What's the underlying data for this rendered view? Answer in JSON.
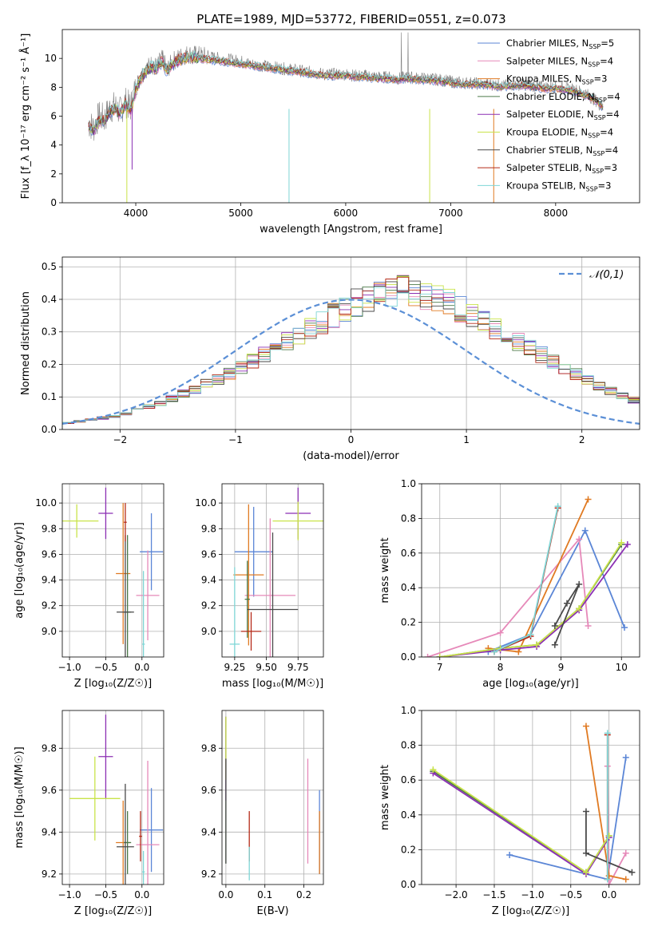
{
  "figure": {
    "title": "PLATE=1989, MJD=53772, FIBERID=0551, z=0.073"
  },
  "models": [
    {
      "name": "Chabrier MILES",
      "nssp": "5",
      "color": "#5b86d6"
    },
    {
      "name": "Salpeter MILES",
      "nssp": "4",
      "color": "#e689b9"
    },
    {
      "name": "Kroupa MILES",
      "nssp": "3",
      "color": "#e07a22"
    },
    {
      "name": "Chabrier ELODIE",
      "nssp": "4",
      "color": "#4c7a4a"
    },
    {
      "name": "Salpeter ELODIE",
      "nssp": "4",
      "color": "#8b2fb3"
    },
    {
      "name": "Kroupa ELODIE",
      "nssp": "4",
      "color": "#c9e34a"
    },
    {
      "name": "Chabrier STELIB",
      "nssp": "4",
      "color": "#4a4a4a"
    },
    {
      "name": "Salpeter STELIB",
      "nssp": "3",
      "color": "#b52a18"
    },
    {
      "name": "Kroupa STELIB",
      "nssp": "3",
      "color": "#7fd6d6"
    }
  ],
  "chart_data": [
    {
      "id": "spectrum",
      "type": "line",
      "xlabel": "wavelength [Angstrom, rest frame]",
      "ylabel": "Flux [f_λ 10⁻¹⁷ erg cm⁻² s⁻¹ Å⁻¹]",
      "xlim": [
        3300,
        8800
      ],
      "ylim": [
        0,
        12
      ],
      "xticks": [
        4000,
        5000,
        6000,
        7000,
        8000
      ],
      "yticks": [
        0,
        2,
        4,
        6,
        8,
        10
      ],
      "data_color": "#808080",
      "data_points": [
        [
          3550,
          5.5
        ],
        [
          3600,
          5.2
        ],
        [
          3650,
          6.0
        ],
        [
          3700,
          5.8
        ],
        [
          3750,
          6.5
        ],
        [
          3800,
          6.7
        ],
        [
          3850,
          6.3
        ],
        [
          3900,
          7.0
        ],
        [
          3950,
          6.6
        ],
        [
          4000,
          8.0
        ],
        [
          4050,
          8.8
        ],
        [
          4100,
          9.3
        ],
        [
          4150,
          9.6
        ],
        [
          4200,
          9.4
        ],
        [
          4250,
          10.0
        ],
        [
          4300,
          9.2
        ],
        [
          4350,
          9.8
        ],
        [
          4400,
          10.0
        ],
        [
          4450,
          10.2
        ],
        [
          4500,
          10.3
        ],
        [
          4600,
          10.2
        ],
        [
          4700,
          10.1
        ],
        [
          4800,
          10.0
        ],
        [
          4900,
          9.9
        ],
        [
          5000,
          9.8
        ],
        [
          5100,
          9.6
        ],
        [
          5200,
          9.5
        ],
        [
          5300,
          9.4
        ],
        [
          5400,
          9.3
        ],
        [
          5500,
          9.2
        ],
        [
          5600,
          9.1
        ],
        [
          5700,
          9.0
        ],
        [
          5800,
          8.9
        ],
        [
          5900,
          8.9
        ],
        [
          6000,
          8.9
        ],
        [
          6100,
          8.8
        ],
        [
          6200,
          8.8
        ],
        [
          6300,
          8.7
        ],
        [
          6400,
          8.7
        ],
        [
          6500,
          8.6
        ],
        [
          6600,
          8.7
        ],
        [
          6700,
          8.6
        ],
        [
          6800,
          8.6
        ],
        [
          6900,
          8.5
        ],
        [
          7000,
          8.4
        ],
        [
          7100,
          8.3
        ],
        [
          7200,
          8.3
        ],
        [
          7300,
          8.2
        ],
        [
          7400,
          8.2
        ],
        [
          7500,
          8.1
        ],
        [
          7600,
          8.2
        ],
        [
          7700,
          8.2
        ],
        [
          7800,
          8.1
        ],
        [
          7900,
          8.0
        ],
        [
          8000,
          8.0
        ],
        [
          8100,
          7.9
        ],
        [
          8200,
          7.8
        ],
        [
          8300,
          7.5
        ],
        [
          8400,
          7.0
        ],
        [
          8450,
          6.5
        ]
      ],
      "model_points": [
        [
          3550,
          5.3
        ],
        [
          3600,
          5.0
        ],
        [
          3650,
          5.7
        ],
        [
          3700,
          5.6
        ],
        [
          3750,
          6.3
        ],
        [
          3800,
          6.5
        ],
        [
          3850,
          6.2
        ],
        [
          3900,
          6.8
        ],
        [
          3950,
          6.4
        ],
        [
          4000,
          7.8
        ],
        [
          4050,
          8.6
        ],
        [
          4100,
          9.1
        ],
        [
          4150,
          9.4
        ],
        [
          4200,
          9.3
        ],
        [
          4250,
          9.8
        ],
        [
          4300,
          9.1
        ],
        [
          4350,
          9.6
        ],
        [
          4400,
          9.8
        ],
        [
          4450,
          10.0
        ],
        [
          4500,
          10.1
        ],
        [
          4600,
          10.0
        ],
        [
          4700,
          9.9
        ],
        [
          4800,
          9.8
        ],
        [
          4900,
          9.7
        ],
        [
          5000,
          9.6
        ],
        [
          5100,
          9.5
        ],
        [
          5200,
          9.4
        ],
        [
          5300,
          9.3
        ],
        [
          5400,
          9.2
        ],
        [
          5500,
          9.1
        ],
        [
          5600,
          9.0
        ],
        [
          5700,
          8.9
        ],
        [
          5800,
          8.8
        ],
        [
          5900,
          8.8
        ],
        [
          6000,
          8.8
        ],
        [
          6100,
          8.7
        ],
        [
          6200,
          8.7
        ],
        [
          6300,
          8.6
        ],
        [
          6400,
          8.6
        ],
        [
          6500,
          8.5
        ],
        [
          6600,
          8.6
        ],
        [
          6700,
          8.5
        ],
        [
          6800,
          8.5
        ],
        [
          6900,
          8.4
        ],
        [
          7000,
          8.3
        ],
        [
          7100,
          8.2
        ],
        [
          7200,
          8.2
        ],
        [
          7300,
          8.2
        ],
        [
          7400,
          8.1
        ],
        [
          7500,
          8.0
        ],
        [
          7600,
          8.1
        ],
        [
          7700,
          8.1
        ],
        [
          7800,
          8.0
        ],
        [
          7900,
          7.9
        ],
        [
          8000,
          7.9
        ],
        [
          8100,
          7.8
        ],
        [
          8200,
          7.7
        ],
        [
          8300,
          7.4
        ],
        [
          8400,
          7.0
        ],
        [
          8450,
          6.6
        ]
      ],
      "legend": "upper-right"
    },
    {
      "id": "residuals",
      "type": "step",
      "xlabel": "(data-model)/error",
      "ylabel": "Normed distribution",
      "xlim": [
        -2.5,
        2.5
      ],
      "ylim": [
        0,
        0.53
      ],
      "xticks": [
        -2,
        -1,
        0,
        1,
        2
      ],
      "yticks": [
        0,
        0.1,
        0.2,
        0.3,
        0.4,
        0.5
      ],
      "bin_edges_start": -2.5,
      "bin_width": 0.1,
      "base_hist": [
        0.02,
        0.025,
        0.03,
        0.035,
        0.04,
        0.05,
        0.06,
        0.07,
        0.08,
        0.095,
        0.11,
        0.12,
        0.14,
        0.155,
        0.17,
        0.19,
        0.21,
        0.23,
        0.25,
        0.27,
        0.29,
        0.31,
        0.33,
        0.35,
        0.37,
        0.39,
        0.4,
        0.41,
        0.42,
        0.43,
        0.42,
        0.41,
        0.4,
        0.39,
        0.37,
        0.35,
        0.33,
        0.31,
        0.29,
        0.27,
        0.25,
        0.23,
        0.21,
        0.19,
        0.17,
        0.15,
        0.135,
        0.12,
        0.105,
        0.09,
        0.08,
        0.07,
        0.06,
        0.05,
        0.045,
        0.04,
        0.035,
        0.03,
        0.025,
        0.02
      ],
      "normal_label": "𝒩(0,1)",
      "normal_color": "#5b8fd6",
      "legend": "upper-right"
    },
    {
      "id": "age-vs-Z",
      "type": "errorbar",
      "xlabel": "Z [log₁₀(Z/Z☉)]",
      "ylabel": "age  [log₁₀(age/yr)]",
      "xlim": [
        -1.1,
        0.3
      ],
      "ylim": [
        8.8,
        10.15
      ],
      "xticks": [
        -1.0,
        -0.5,
        0.0
      ],
      "yticks": [
        9.0,
        9.2,
        9.4,
        9.6,
        9.8,
        10.0
      ],
      "points": [
        [
          0.13,
          9.62,
          0.16,
          0.3
        ],
        [
          0.08,
          9.28,
          0.16,
          0.35
        ],
        [
          -0.26,
          9.45,
          0.1,
          0.55
        ],
        [
          -0.2,
          9.15,
          0.05,
          0.6
        ],
        [
          -0.5,
          9.92,
          0.1,
          0.2
        ],
        [
          -0.9,
          9.86,
          0.3,
          0.13
        ],
        [
          -0.23,
          9.15,
          0.12,
          0.6
        ],
        [
          -0.23,
          9.85,
          0.02,
          0.15
        ],
        [
          0.02,
          8.9,
          0.02,
          0.57
        ]
      ]
    },
    {
      "id": "age-vs-mass",
      "type": "errorbar",
      "xlabel": "mass [log₁₀(M/M☉)]",
      "ylabel": "",
      "xlim": [
        9.15,
        9.95
      ],
      "ylim": [
        8.8,
        10.15
      ],
      "xticks": [
        9.25,
        9.5,
        9.75
      ],
      "yticks": [
        9.0,
        9.2,
        9.4,
        9.6,
        9.8,
        10.0
      ],
      "points": [
        [
          9.4,
          9.62,
          0.15,
          0.35
        ],
        [
          9.53,
          9.28,
          0.2,
          0.6
        ],
        [
          9.36,
          9.44,
          0.12,
          0.55
        ],
        [
          9.35,
          9.25,
          0.02,
          0.3
        ],
        [
          9.75,
          9.92,
          0.1,
          0.2
        ],
        [
          9.75,
          9.86,
          0.2,
          0.15
        ],
        [
          9.55,
          9.17,
          0.2,
          0.6
        ],
        [
          9.38,
          9.0,
          0.08,
          0.15
        ],
        [
          9.25,
          8.9,
          0.04,
          0.6
        ]
      ]
    },
    {
      "id": "massweight-vs-age",
      "type": "line",
      "xlabel": "age  [log₁₀(age/yr)]",
      "ylabel": "mass weight",
      "xlim": [
        6.7,
        10.3
      ],
      "ylim": [
        0,
        1.0
      ],
      "xticks": [
        7,
        8,
        9,
        10
      ],
      "yticks": [
        0.0,
        0.2,
        0.4,
        0.6,
        0.8,
        1.0
      ],
      "series": [
        {
          "name": "Chabrier MILES",
          "x": [
            7.8,
            8.5,
            9.4,
            10.05
          ],
          "y": [
            0.03,
            0.13,
            0.73,
            0.17
          ]
        },
        {
          "name": "Salpeter MILES",
          "x": [
            6.8,
            8.0,
            9.3,
            9.45
          ],
          "y": [
            0.0,
            0.14,
            0.68,
            0.18
          ]
        },
        {
          "name": "Kroupa MILES",
          "x": [
            7.8,
            8.3,
            9.45
          ],
          "y": [
            0.05,
            0.03,
            0.91
          ]
        },
        {
          "name": "Chabrier ELODIE",
          "x": [
            7.0,
            8.0,
            8.6,
            9.3,
            10.0
          ],
          "y": [
            0.0,
            0.05,
            0.07,
            0.28,
            0.65
          ]
        },
        {
          "name": "Salpeter ELODIE",
          "x": [
            7.0,
            8.0,
            8.6,
            9.3,
            10.1
          ],
          "y": [
            0.0,
            0.04,
            0.06,
            0.27,
            0.65
          ]
        },
        {
          "name": "Kroupa ELODIE",
          "x": [
            7.0,
            8.0,
            8.6,
            9.3,
            10.0
          ],
          "y": [
            0.0,
            0.05,
            0.07,
            0.28,
            0.66
          ]
        },
        {
          "name": "Chabrier STELIB",
          "x": [
            8.9,
            9.1,
            9.3,
            8.9
          ],
          "y": [
            0.18,
            0.31,
            0.42,
            0.07
          ]
        },
        {
          "name": "Salpeter STELIB",
          "x": [
            7.9,
            8.5,
            8.95
          ],
          "y": [
            0.03,
            0.12,
            0.86
          ]
        },
        {
          "name": "Kroupa STELIB",
          "x": [
            7.9,
            8.5,
            8.95
          ],
          "y": [
            0.03,
            0.13,
            0.87
          ]
        }
      ]
    },
    {
      "id": "mass-vs-Z",
      "type": "errorbar",
      "xlabel": "Z [log₁₀(Z/Z☉)]",
      "ylabel": "mass [log₁₀(M/M☉)]",
      "xlim": [
        -1.1,
        0.3
      ],
      "ylim": [
        9.15,
        9.98
      ],
      "xticks": [
        -1.0,
        -0.5,
        0.0
      ],
      "yticks": [
        9.2,
        9.4,
        9.6,
        9.8
      ],
      "points": [
        [
          0.13,
          9.41,
          0.16,
          0.2
        ],
        [
          0.08,
          9.34,
          0.16,
          0.4
        ],
        [
          -0.26,
          9.35,
          0.1,
          0.2
        ],
        [
          -0.2,
          9.35,
          0.05,
          0.15
        ],
        [
          -0.5,
          9.76,
          0.1,
          0.2
        ],
        [
          -0.65,
          9.56,
          0.35,
          0.2
        ],
        [
          -0.23,
          9.33,
          0.12,
          0.3
        ],
        [
          -0.02,
          9.38,
          0.02,
          0.12
        ],
        [
          0.02,
          9.21,
          0.02,
          0.1
        ]
      ]
    },
    {
      "id": "mass-vs-EBV",
      "type": "errorbar",
      "xlabel": "E(B-V)",
      "ylabel": "",
      "xlim": [
        -0.01,
        0.25
      ],
      "ylim": [
        9.15,
        9.98
      ],
      "xticks": [
        0.0,
        0.1,
        0.2
      ],
      "yticks": [
        9.2,
        9.4,
        9.6,
        9.8
      ],
      "points": [
        [
          0.24,
          9.4,
          0.0,
          0.2
        ],
        [
          0.21,
          9.5,
          0.0,
          0.25
        ],
        [
          0.24,
          9.35,
          0.0,
          0.15
        ],
        [
          0.0,
          9.6,
          0.0,
          0.35
        ],
        [
          0.0,
          9.75,
          0.0,
          0.2
        ],
        [
          0.0,
          9.8,
          0.0,
          0.15
        ],
        [
          0.0,
          9.5,
          0.0,
          0.25
        ],
        [
          0.06,
          9.38,
          0.0,
          0.12
        ],
        [
          0.06,
          9.25,
          0.0,
          0.08
        ]
      ]
    },
    {
      "id": "massweight-vs-Z",
      "type": "line",
      "xlabel": "Z [log₁₀(Z/Z☉)]",
      "ylabel": "mass weight",
      "xlim": [
        -2.45,
        0.4
      ],
      "ylim": [
        0,
        1.0
      ],
      "xticks": [
        -2.0,
        -1.5,
        -1.0,
        -0.5,
        0.0
      ],
      "yticks": [
        0.0,
        0.2,
        0.4,
        0.6,
        0.8,
        1.0
      ],
      "series": [
        {
          "name": "Chabrier MILES",
          "x": [
            -1.3,
            -0.02,
            0.22
          ],
          "y": [
            0.17,
            0.03,
            0.73
          ]
        },
        {
          "name": "Salpeter MILES",
          "x": [
            -0.02,
            0.0,
            0.22
          ],
          "y": [
            0.68,
            0.0,
            0.18
          ]
        },
        {
          "name": "Kroupa MILES",
          "x": [
            -0.3,
            0.0,
            0.22
          ],
          "y": [
            0.91,
            0.05,
            0.03
          ]
        },
        {
          "name": "Chabrier ELODIE",
          "x": [
            -2.3,
            -0.3,
            0.0
          ],
          "y": [
            0.65,
            0.07,
            0.28
          ]
        },
        {
          "name": "Salpeter ELODIE",
          "x": [
            -2.3,
            -0.3,
            0.0
          ],
          "y": [
            0.64,
            0.06,
            0.27
          ]
        },
        {
          "name": "Kroupa ELODIE",
          "x": [
            -2.3,
            -0.3,
            0.0
          ],
          "y": [
            0.66,
            0.07,
            0.28
          ]
        },
        {
          "name": "Chabrier STELIB",
          "x": [
            -0.3,
            -0.3,
            0.3
          ],
          "y": [
            0.42,
            0.18,
            0.07
          ]
        },
        {
          "name": "Salpeter STELIB",
          "x": [
            -0.02,
            -0.02
          ],
          "y": [
            0.03,
            0.86
          ]
        },
        {
          "name": "Kroupa STELIB",
          "x": [
            -0.02,
            -0.02
          ],
          "y": [
            0.03,
            0.87
          ]
        }
      ]
    }
  ]
}
